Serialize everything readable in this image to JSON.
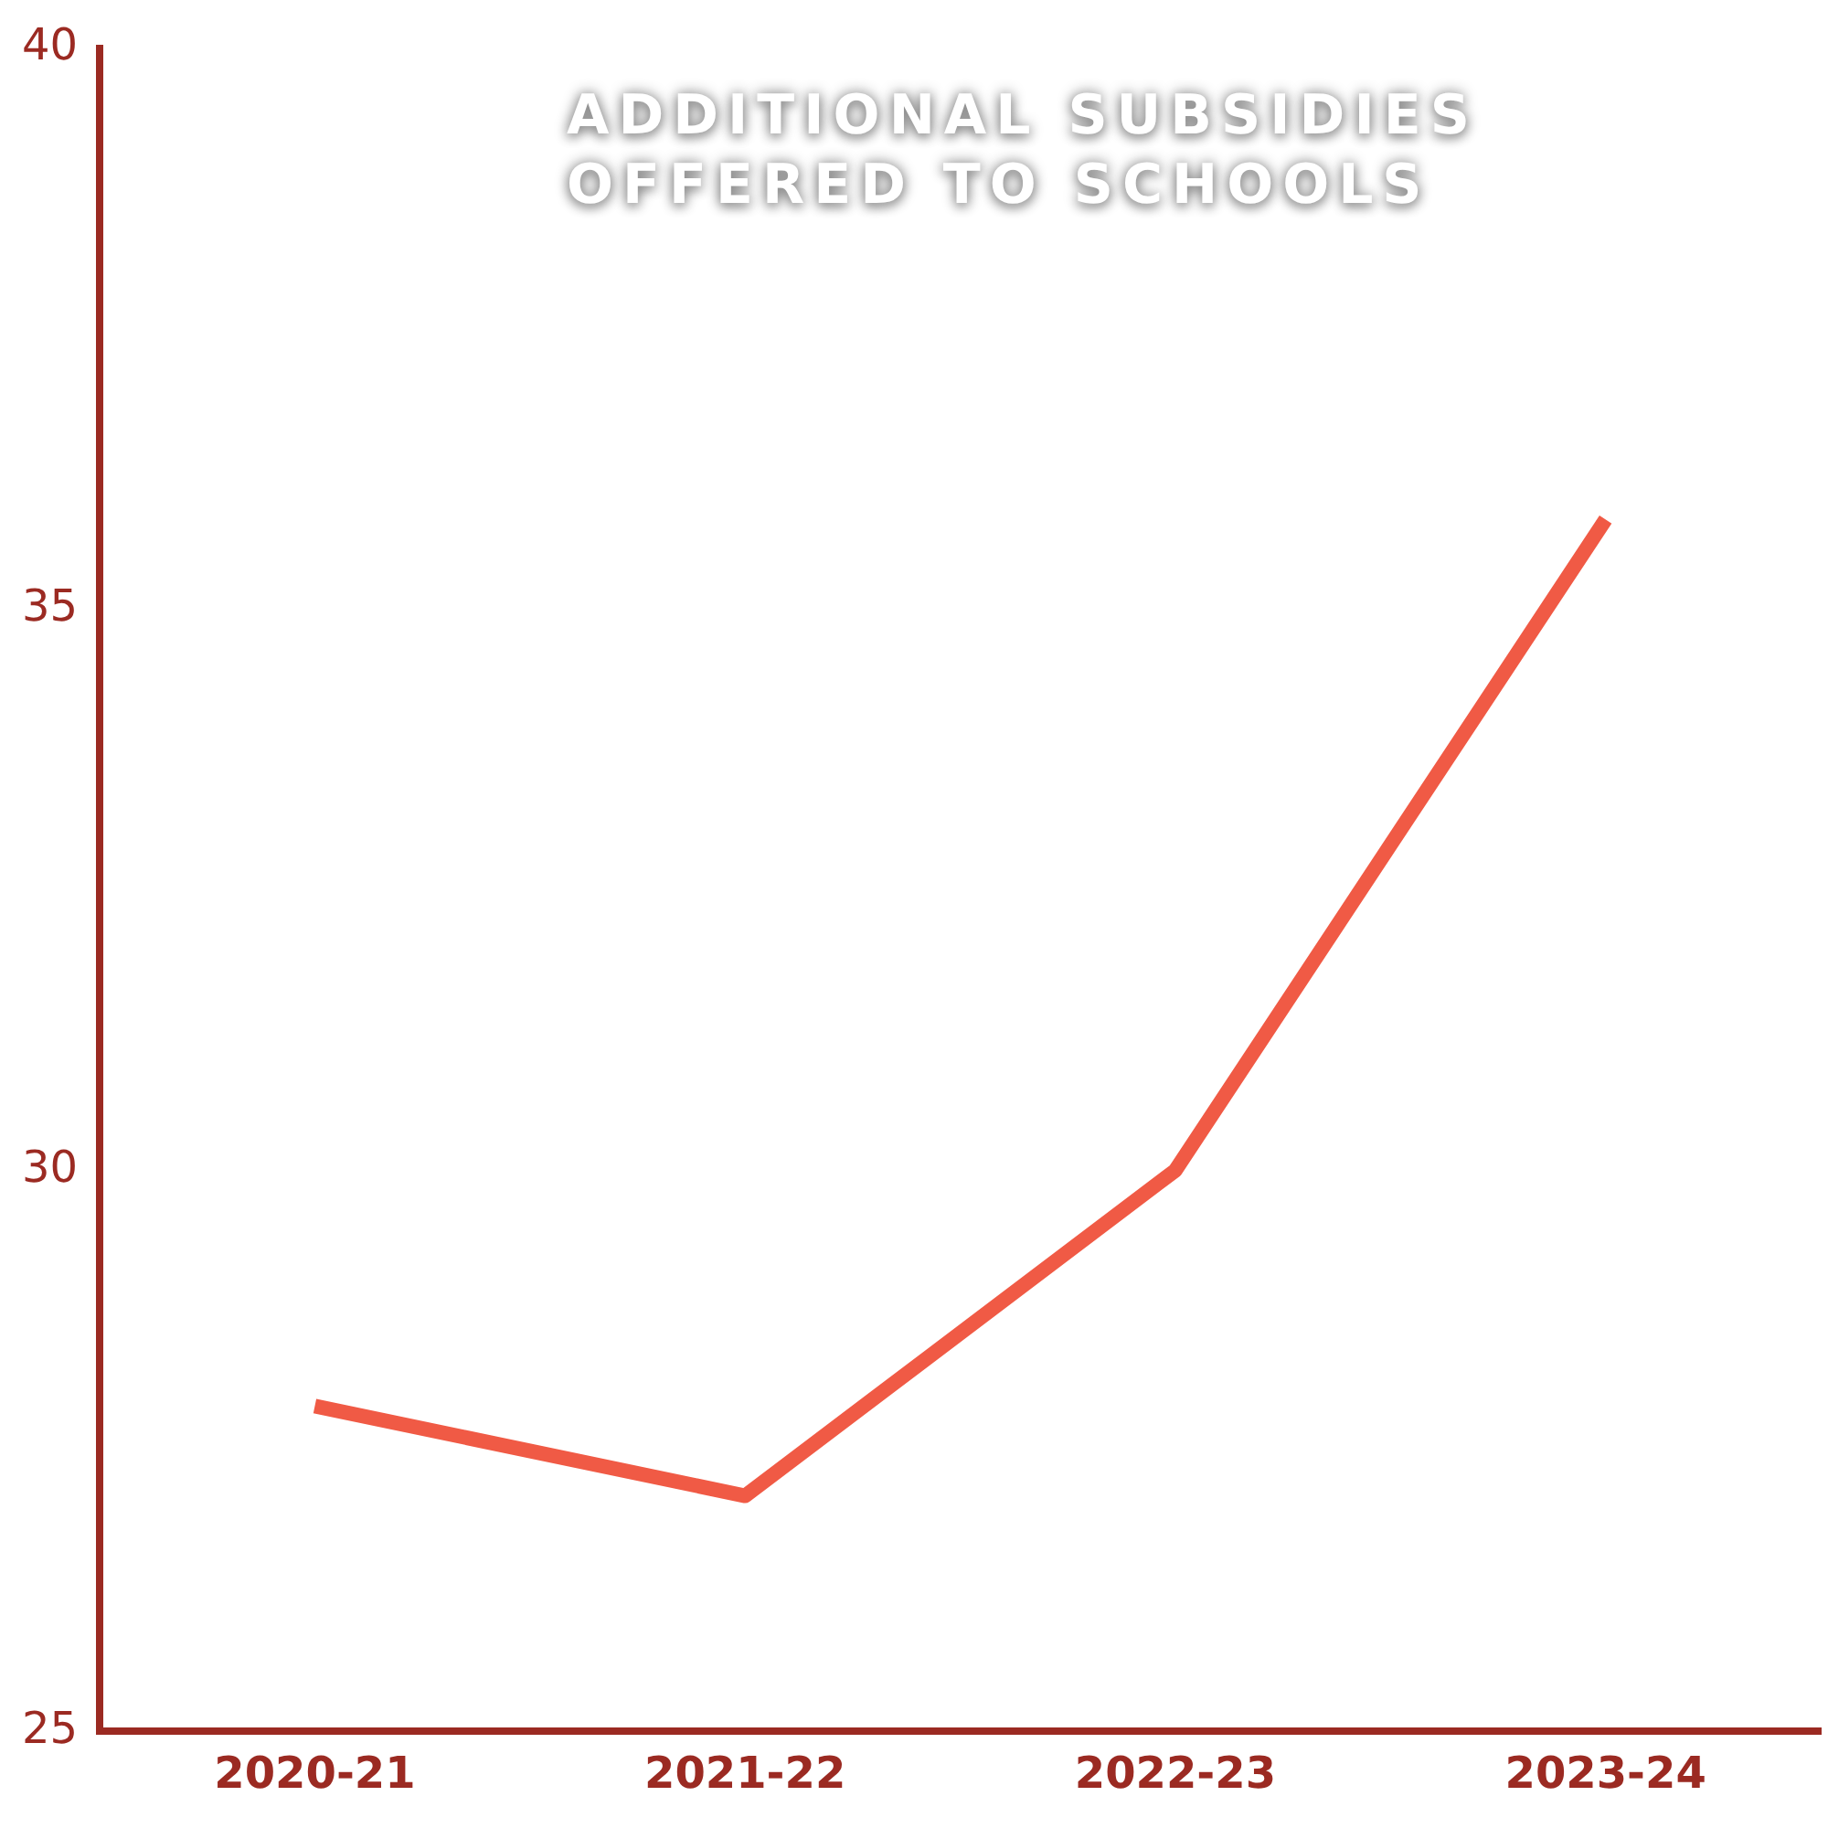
{
  "chart_data": {
    "type": "line",
    "title": "ADDITIONAL SUBSIDIES OFFERED TO SCHOOLS",
    "categories": [
      "2020-21",
      "2021-22",
      "2022-23",
      "2023-24"
    ],
    "series": [
      {
        "color": "#f05a45",
        "values": [
          27.9,
          27.1,
          30.0,
          35.8
        ]
      }
    ],
    "ylim": [
      25,
      40
    ],
    "yticks": [
      25,
      30,
      35,
      40
    ],
    "grid": false,
    "legend": false,
    "marker": "none",
    "line_style": "solid"
  }
}
